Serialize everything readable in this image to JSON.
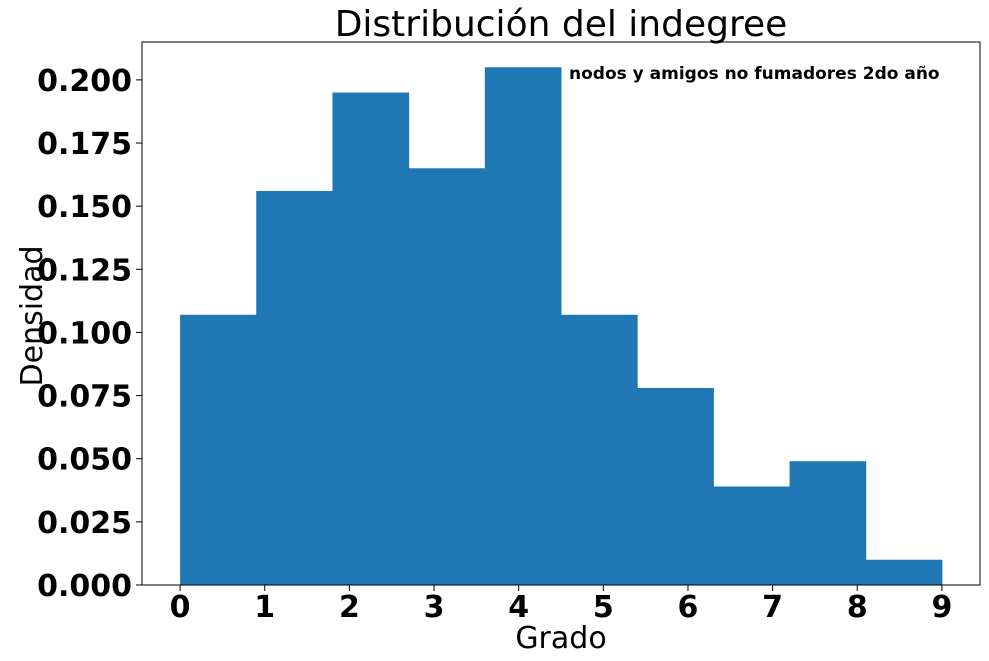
{
  "chart_data": {
    "type": "bar",
    "title": "Distribución del indegree",
    "xlabel": "Grado",
    "ylabel": "Densidad",
    "annotation": "nodos y amigos no fumadores 2do año",
    "bin_edges": [
      0,
      0.9,
      1.8,
      2.7,
      3.6,
      4.5,
      5.4,
      6.3,
      7.2,
      8.1,
      9.0
    ],
    "values": [
      0.107,
      0.156,
      0.195,
      0.165,
      0.205,
      0.107,
      0.078,
      0.039,
      0.049,
      0.01
    ],
    "color": "#1f77b4",
    "xticks": [
      0,
      1,
      2,
      3,
      4,
      5,
      6,
      7,
      8,
      9
    ],
    "xtick_labels": [
      "0",
      "1",
      "2",
      "3",
      "4",
      "5",
      "6",
      "7",
      "8",
      "9"
    ],
    "yticks": [
      0.0,
      0.025,
      0.05,
      0.075,
      0.1,
      0.125,
      0.15,
      0.175,
      0.2
    ],
    "ytick_labels": [
      "0.000",
      "0.025",
      "0.050",
      "0.075",
      "0.100",
      "0.125",
      "0.150",
      "0.175",
      "0.200"
    ],
    "xlim": [
      -0.45,
      9.45
    ],
    "ylim": [
      0,
      0.215
    ],
    "grid": false
  }
}
